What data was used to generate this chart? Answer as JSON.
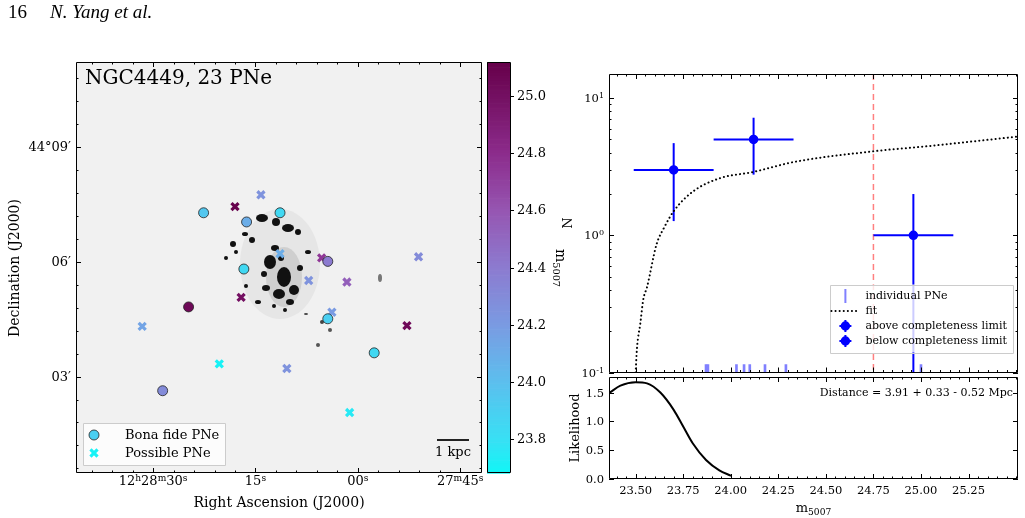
{
  "chart_data": [
    {
      "type": "scatter",
      "title": "NGC4449, 23 PNe",
      "xlabel": "Right Ascension (J2000)",
      "ylabel": "Declination (J2000)",
      "clabel": "m$_{5007}$",
      "annotations": [
        "16",
        "N. Yang et al.",
        "1 kpc"
      ],
      "xlim": [
        41.3,
        -18.2
      ],
      "ylim": [
        0.48,
        11.22
      ],
      "xticks": [
        {
          "value": 39,
          "label": null
        },
        {
          "value": 36,
          "label": null
        },
        {
          "value": 33,
          "label": null
        },
        {
          "value": 30,
          "label": "12$^{h}$28$^{m}$30$^{s}$"
        },
        {
          "value": 27,
          "label": null
        },
        {
          "value": 24,
          "label": null
        },
        {
          "value": 21,
          "label": null
        },
        {
          "value": 18,
          "label": null
        },
        {
          "value": 15,
          "label": "15$^{s}$"
        },
        {
          "value": 12,
          "label": null
        },
        {
          "value": 9,
          "label": null
        },
        {
          "value": 6,
          "label": null
        },
        {
          "value": 3,
          "label": null
        },
        {
          "value": 0,
          "label": "00$^{s}$"
        },
        {
          "value": -3,
          "label": null
        },
        {
          "value": -6,
          "label": null
        },
        {
          "value": -9,
          "label": null
        },
        {
          "value": -12,
          "label": null
        },
        {
          "value": -15,
          "label": "27$^{m}$45$^{s}$"
        }
      ],
      "yticks": [
        {
          "value": 0.6,
          "label": null
        },
        {
          "value": 1.2,
          "label": null
        },
        {
          "value": 1.8,
          "label": null
        },
        {
          "value": 2.4,
          "label": null
        },
        {
          "value": 3,
          "label": "03′"
        },
        {
          "value": 3.6,
          "label": null
        },
        {
          "value": 4.2,
          "label": null
        },
        {
          "value": 4.8,
          "label": null
        },
        {
          "value": 5.4,
          "label": null
        },
        {
          "value": 6,
          "label": "06′"
        },
        {
          "value": 6.6,
          "label": null
        },
        {
          "value": 7.2,
          "label": null
        },
        {
          "value": 7.8,
          "label": null
        },
        {
          "value": 8.4,
          "label": null
        },
        {
          "value": 9,
          "label": "44°09′"
        },
        {
          "value": 9.6,
          "label": null
        },
        {
          "value": 10.2,
          "label": null
        },
        {
          "value": 10.8,
          "label": null
        }
      ],
      "clim": [
        23.68,
        25.12
      ],
      "cticks": [
        23.8,
        {
          "value": 24.0,
          "label": "24.0"
        },
        24.2,
        24.4,
        24.6,
        24.8,
        {
          "value": 25.0,
          "label": "25.0"
        }
      ],
      "legend": "bottom left",
      "series": [
        {
          "name": "Bona fide PNe",
          "marker": "circle",
          "x": [
            4.4,
            22.6,
            11.4,
            16.3,
            4.4,
            16.7,
            24.8,
            -2.4,
            28.6
          ],
          "values": [
            4.51,
            7.28,
            7.28,
            7.04,
            6.01,
            5.81,
            4.82,
            3.62,
            2.63
          ],
          "colors": [
            "#4acff1",
            "#53c7ef",
            "#41d8f2",
            "#6bade8",
            "#8c7bd0",
            "#41d8f2",
            "#6e0958",
            "#41d8f2",
            "#838bd9"
          ]
        },
        {
          "name": "Possible PNe",
          "marker": "cross",
          "x": [
            20.3,
            14.2,
            18.0,
            11.4,
            5.3,
            -8.9,
            7.2,
            1.6,
            17.1,
            3.8,
            31.6,
            -7.2,
            10.4,
            1.2
          ],
          "values": [
            3.33,
            7.75,
            7.44,
            6.21,
            6.1,
            6.13,
            5.51,
            5.47,
            5.07,
            4.68,
            4.31,
            4.33,
            3.21,
            2.06
          ],
          "colors": [
            "#17f2f6",
            "#7f93dd",
            "#68034e",
            "#6bade8",
            "#8f3796",
            "#838bd9",
            "#7f93dd",
            "#935fba",
            "#741062",
            "#7a9be2",
            "#73a4e5",
            "#6e0958",
            "#7f93dd",
            "#27e9f5"
          ]
        }
      ]
    },
    {
      "type": "scatter",
      "ylabel": "N",
      "log": "y",
      "xlim": [
        23.36,
        25.51
      ],
      "ylim": [
        0.1,
        15
      ],
      "tick_labels": "y",
      "legend": "bottom right",
      "xticks": [
        {
          "value": 23.4,
          "label": null
        },
        {
          "value": 23.45,
          "label": null
        },
        23.5,
        {
          "value": 23.55,
          "label": null
        },
        {
          "value": 23.6,
          "label": null
        },
        {
          "value": 23.65,
          "label": null
        },
        {
          "value": 23.7,
          "label": null
        },
        23.75,
        {
          "value": 23.8,
          "label": null
        },
        {
          "value": 23.85,
          "label": null
        },
        {
          "value": 23.9,
          "label": null
        },
        {
          "value": 23.95,
          "label": null
        },
        24,
        {
          "value": 24.05,
          "label": null
        },
        {
          "value": 24.1,
          "label": null
        },
        {
          "value": 24.15,
          "label": null
        },
        {
          "value": 24.2,
          "label": null
        },
        24.25,
        {
          "value": 24.3,
          "label": null
        },
        {
          "value": 24.35,
          "label": null
        },
        {
          "value": 24.4,
          "label": null
        },
        {
          "value": 24.45,
          "label": null
        },
        24.5,
        {
          "value": 24.55,
          "label": null
        },
        {
          "value": 24.6,
          "label": null
        },
        {
          "value": 24.65,
          "label": null
        },
        {
          "value": 24.7,
          "label": null
        },
        24.75,
        {
          "value": 24.8,
          "label": null
        },
        {
          "value": 24.85,
          "label": null
        },
        {
          "value": 24.9,
          "label": null
        },
        {
          "value": 24.95,
          "label": null
        },
        25,
        {
          "value": 25.05,
          "label": null
        },
        {
          "value": 25.1,
          "label": null
        },
        {
          "value": 25.15,
          "label": null
        },
        {
          "value": 25.2,
          "label": null
        },
        25.25,
        {
          "value": 25.3,
          "label": null
        },
        {
          "value": 25.35,
          "label": null
        },
        {
          "value": 25.4,
          "label": null
        },
        {
          "value": 25.45,
          "label": null
        },
        {
          "value": 25.5,
          "label": null
        }
      ],
      "yticks": [
        {
          "value": 0.1,
          "label": "10$^{-1}$"
        },
        {
          "value": 0.2,
          "label": null
        },
        {
          "value": 0.3,
          "label": null
        },
        {
          "value": 0.4,
          "label": null
        },
        {
          "value": 0.5,
          "label": null
        },
        {
          "value": 0.6,
          "label": null
        },
        {
          "value": 0.7,
          "label": null
        },
        {
          "value": 0.8,
          "label": null
        },
        {
          "value": 0.9,
          "label": null
        },
        {
          "value": 1,
          "label": "10$^{0}$"
        },
        {
          "value": 2,
          "label": null
        },
        {
          "value": 3,
          "label": null
        },
        {
          "value": 4,
          "label": null
        },
        {
          "value": 5,
          "label": null
        },
        {
          "value": 6,
          "label": null
        },
        {
          "value": 7,
          "label": null
        },
        {
          "value": 8,
          "label": null
        },
        {
          "value": 9,
          "label": null
        },
        {
          "value": 10,
          "label": "10$^{1}$"
        }
      ],
      "ref_lines": [
        {
          "axis": "x",
          "value": 24.75,
          "color": "#ff8080",
          "line_style": "dashed"
        }
      ],
      "series": [
        {
          "name": "individual PNe",
          "type": "bar",
          "color": "#8080ff",
          "x": [
            23.87,
            23.88,
            24.03,
            24.07,
            24.1,
            24.18,
            24.29,
            25.0
          ],
          "values": [
            0.114,
            0.114,
            0.114,
            0.114,
            0.114,
            0.114,
            0.114,
            0.114
          ]
        },
        {
          "name": "fit",
          "type": "line",
          "color": "#000000",
          "line_style": "dotted",
          "marker": "none",
          "x": [
            23.5,
            23.507,
            23.525,
            23.54,
            23.56,
            23.61,
            23.65,
            23.7,
            23.8,
            23.94,
            24.12,
            24.33,
            24.75,
            25.03,
            25.51
          ],
          "values": [
            0.1,
            0.15,
            0.23,
            0.34,
            0.42,
            0.86,
            1.14,
            1.5,
            2.08,
            2.6,
            2.9,
            3.42,
            4.1,
            4.46,
            5.25
          ]
        },
        {
          "name": "above completeness limit",
          "type": "scatter",
          "color": "#0000ff",
          "marker": "circle",
          "x": [
            23.7,
            24.12
          ],
          "values": [
            3,
            5
          ],
          "errors": [
            [
              1.27,
              4.7
            ],
            [
              2.77,
              7.2
            ]
          ],
          "xerrors": [
            0.21,
            0.21
          ]
        },
        {
          "name": "below completeness limit",
          "type": "scatter",
          "color": "#0000ff",
          "marker": "circle",
          "x": [
            24.96
          ],
          "values": [
            1
          ],
          "errors": [
            [
              0.1,
              2
            ]
          ],
          "xerrors": [
            0.21
          ]
        }
      ]
    },
    {
      "type": "line",
      "xlabel": "m$_{5007}$",
      "ylabel": "Likelihood",
      "xlim": [
        23.36,
        25.51
      ],
      "ylim": [
        0,
        1.77
      ],
      "xticks": [
        {
          "value": 23.4,
          "label": null
        },
        {
          "value": 23.45,
          "label": null
        },
        {
          "value": 23.5,
          "label": "23.50"
        },
        {
          "value": 23.55,
          "label": null
        },
        {
          "value": 23.6,
          "label": null
        },
        {
          "value": 23.65,
          "label": null
        },
        {
          "value": 23.7,
          "label": null
        },
        23.75,
        {
          "value": 23.8,
          "label": null
        },
        {
          "value": 23.85,
          "label": null
        },
        {
          "value": 23.9,
          "label": null
        },
        {
          "value": 23.95,
          "label": null
        },
        {
          "value": 24.0,
          "label": "24.00"
        },
        {
          "value": 24.05,
          "label": null
        },
        {
          "value": 24.1,
          "label": null
        },
        {
          "value": 24.15,
          "label": null
        },
        {
          "value": 24.2,
          "label": null
        },
        24.25,
        {
          "value": 24.3,
          "label": null
        },
        {
          "value": 24.35,
          "label": null
        },
        {
          "value": 24.4,
          "label": null
        },
        {
          "value": 24.45,
          "label": null
        },
        {
          "value": 24.5,
          "label": "24.50"
        },
        {
          "value": 24.55,
          "label": null
        },
        {
          "value": 24.6,
          "label": null
        },
        {
          "value": 24.65,
          "label": null
        },
        {
          "value": 24.7,
          "label": null
        },
        24.75,
        {
          "value": 24.8,
          "label": null
        },
        {
          "value": 24.85,
          "label": null
        },
        {
          "value": 24.9,
          "label": null
        },
        {
          "value": 24.95,
          "label": null
        },
        {
          "value": 25.0,
          "label": "25.00"
        },
        {
          "value": 25.05,
          "label": null
        },
        {
          "value": 25.1,
          "label": null
        },
        {
          "value": 25.15,
          "label": null
        },
        {
          "value": 25.2,
          "label": null
        },
        25.25,
        {
          "value": 25.3,
          "label": null
        },
        {
          "value": 25.35,
          "label": null
        },
        {
          "value": 25.4,
          "label": null
        },
        {
          "value": 25.45,
          "label": null
        },
        {
          "value": 25.5,
          "label": null
        }
      ],
      "yticks": [
        {
          "value": 0,
          "label": "0.0"
        },
        0.5,
        {
          "value": 1,
          "label": "1.0"
        },
        1.5
      ],
      "annotations": [
        "Distance = 3.91 + 0.33 - 0.52 Mpc"
      ],
      "series": [
        {
          "color": "#000000",
          "marker": "none",
          "x": [
            23.364,
            23.42,
            23.5,
            23.56,
            23.63,
            23.7,
            23.75,
            23.8,
            23.87,
            23.94,
            24.0
          ],
          "values": [
            1.5,
            1.62,
            1.68,
            1.66,
            1.5,
            1.2,
            0.91,
            0.62,
            0.33,
            0.15,
            0.06
          ]
        }
      ]
    }
  ]
}
